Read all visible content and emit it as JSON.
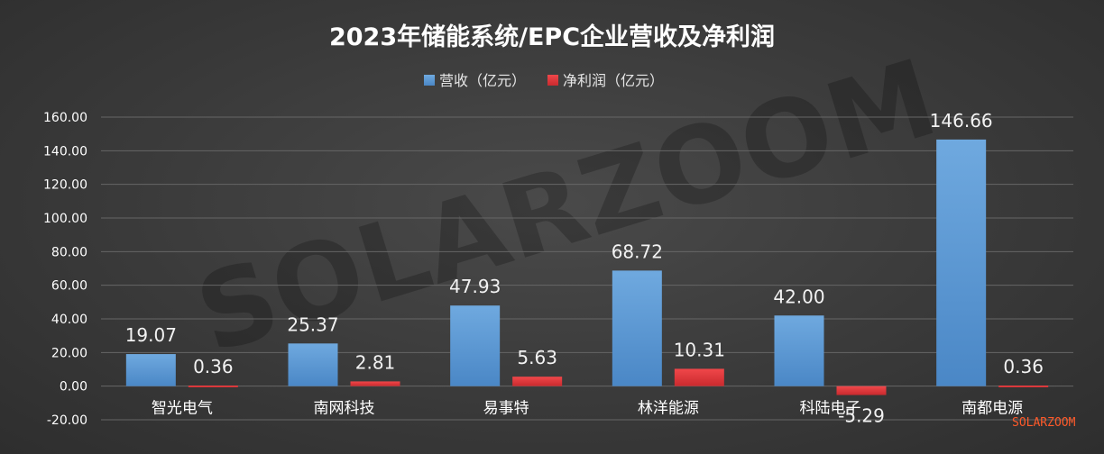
{
  "watermark": "SOLARZOOM",
  "logo": "SOLARZOOM",
  "colors": {
    "revenue": "#5b9bd5",
    "profit": "#e8363a",
    "grid": "#666666"
  },
  "chart_data": {
    "type": "bar",
    "title": "2023年储能系统/EPC企业营收及净利润",
    "categories": [
      "智光电气",
      "南网科技",
      "易事特",
      "林洋能源",
      "科陆电子",
      "南都电源"
    ],
    "series": [
      {
        "name": "营收（亿元）",
        "values": [
          19.07,
          25.37,
          47.93,
          68.72,
          42.0,
          146.66
        ],
        "labels": [
          "19.07",
          "25.37",
          "47.93",
          "68.72",
          "42.00",
          "146.66"
        ]
      },
      {
        "name": "净利润（亿元）",
        "values": [
          0.36,
          2.81,
          5.63,
          10.31,
          -5.29,
          0.36
        ],
        "labels": [
          "0.36",
          "2.81",
          "5.63",
          "10.31",
          "-5.29",
          "0.36"
        ]
      }
    ],
    "yticks": [
      "-20.00",
      "0.00",
      "20.00",
      "40.00",
      "60.00",
      "80.00",
      "100.00",
      "120.00",
      "140.00",
      "160.00"
    ],
    "ylim": [
      -20,
      160
    ],
    "legend": "top-center",
    "grid": true
  }
}
